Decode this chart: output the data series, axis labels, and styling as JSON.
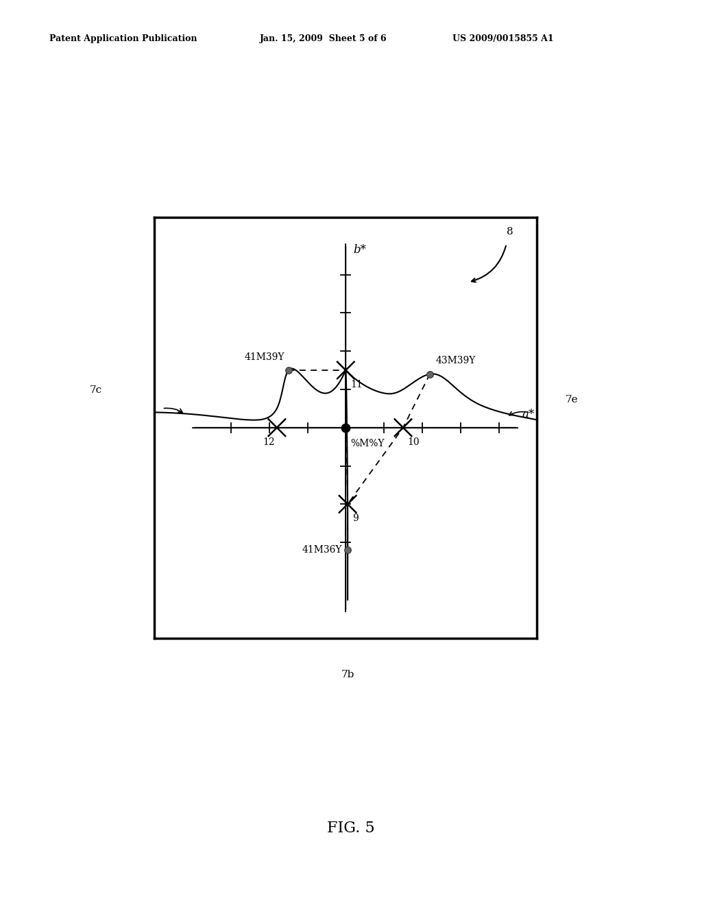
{
  "bg_color": "#ffffff",
  "header_left": "Patent Application Publication",
  "header_mid": "Jan. 15, 2009  Sheet 5 of 6",
  "header_right": "US 2009/0015855 A1",
  "fig_label": "FIG. 5",
  "axis_range": {
    "xmin": -5.0,
    "xmax": 5.0,
    "ymin": -5.5,
    "ymax": 5.5
  },
  "label_bstar": "b*",
  "label_astar": "a*",
  "font_sizes": {
    "header": 9,
    "axis_labels": 12,
    "fig_label": 16,
    "numbers": 10,
    "curve_labels": 11
  }
}
